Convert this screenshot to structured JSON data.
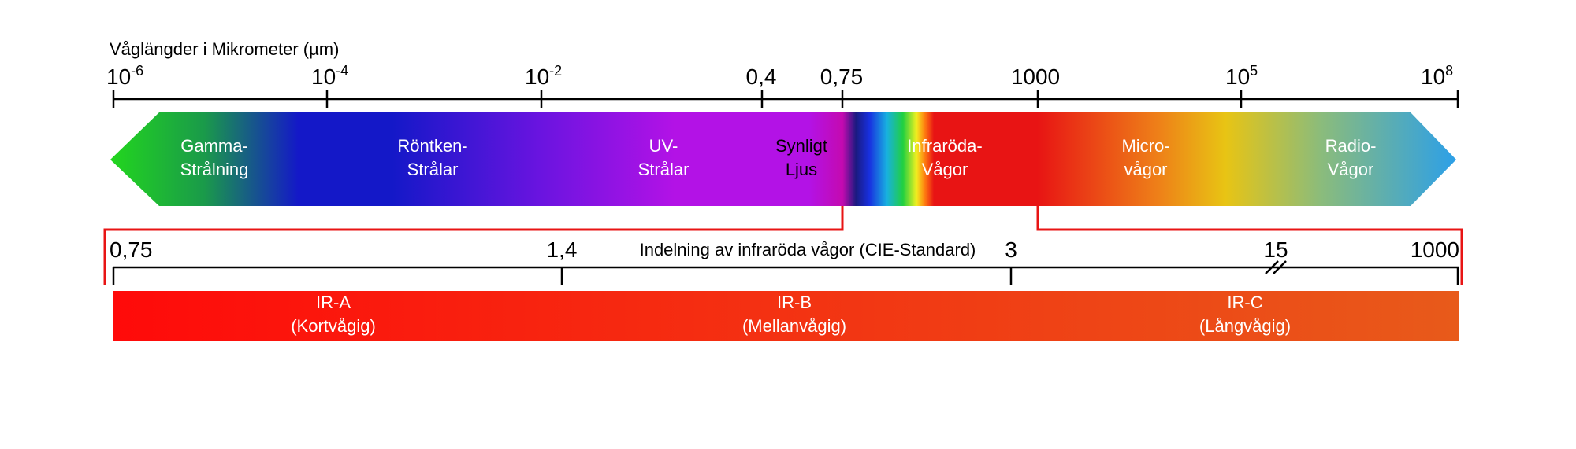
{
  "top_scale": {
    "title": "Våglängder i Mikrometer (µm)",
    "ticks": [
      {
        "base": "10",
        "exp": "-6"
      },
      {
        "base": "10",
        "exp": "-4"
      },
      {
        "base": "10",
        "exp": "-2"
      },
      {
        "base": "0,4",
        "exp": ""
      },
      {
        "base": "0,75",
        "exp": ""
      },
      {
        "base": "1000",
        "exp": ""
      },
      {
        "base": "10",
        "exp": "5"
      },
      {
        "base": "10",
        "exp": "8"
      }
    ]
  },
  "spectrum_bands": [
    {
      "line1": "Gamma-",
      "line2": "Strålning"
    },
    {
      "line1": "Röntken-",
      "line2": "Strålar"
    },
    {
      "line1": "UV-",
      "line2": "Strålar"
    },
    {
      "line1": "Synligt",
      "line2": "Ljus"
    },
    {
      "line1": "Infraröda-",
      "line2": "Vågor"
    },
    {
      "line1": "Micro-",
      "line2": "vågor"
    },
    {
      "line1": "Radio-",
      "line2": "Vågor"
    }
  ],
  "ir_scale": {
    "title": "Indelning av infraröda vågor (CIE-Standard)",
    "ticks": [
      "0,75",
      "1,4",
      "3",
      "15",
      "1000"
    ]
  },
  "ir_bands": [
    {
      "name": "IR-A",
      "desc": "(Kortvågig)"
    },
    {
      "name": "IR-B",
      "desc": "(Mellanvågig)"
    },
    {
      "name": "IR-C",
      "desc": "(Långvågig)"
    }
  ],
  "colors": {
    "gamma": "#22d61e",
    "xray": "#1418c8",
    "uv": "#b312e6",
    "infrared": "#e81414",
    "micro": "#e8c414",
    "radio": "#2ea0e6",
    "bracket": "#e81414",
    "ir_start": "#ff0a0a",
    "ir_end": "#e85a1a"
  }
}
